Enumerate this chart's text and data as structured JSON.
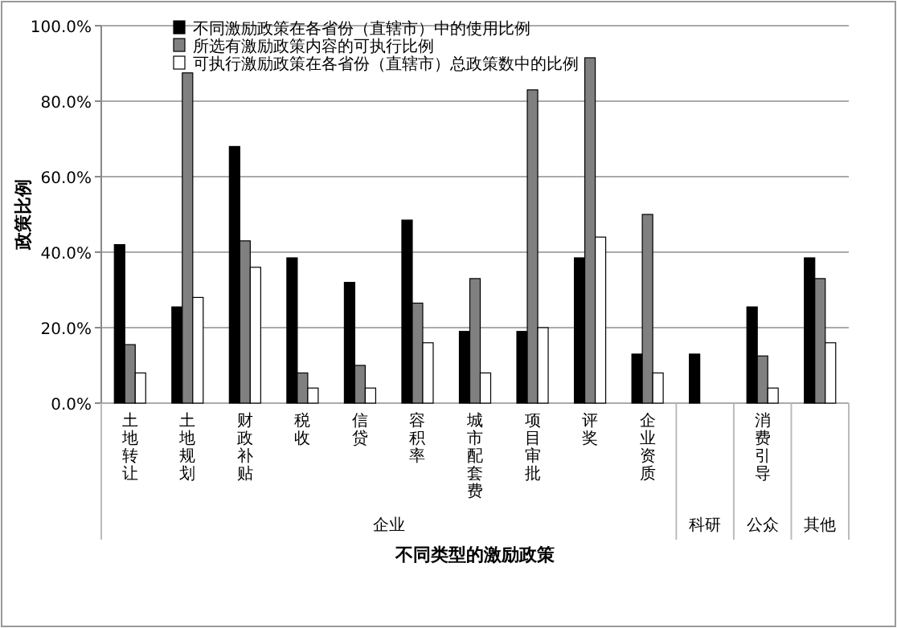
{
  "chart_data": {
    "type": "bar",
    "categories": [
      "土地转让",
      "土地规划",
      "财政补贴",
      "税收",
      "信贷",
      "容积率",
      "城市配套费",
      "项目审批",
      "评奖",
      "企业资质",
      null,
      "消费引导",
      null
    ],
    "series": [
      {
        "name": "不同激励政策在各省份（直辖市）中的使用比例",
        "color": "#000000",
        "values": [
          42,
          25.5,
          68,
          38.5,
          32,
          48.5,
          19,
          19,
          38.5,
          13,
          13,
          25.5,
          38.5
        ]
      },
      {
        "name": "所选有激励政策内容的可执行比例",
        "color": "#808080",
        "values": [
          15.5,
          87.5,
          43,
          8,
          10,
          26.5,
          33,
          83,
          91.5,
          50,
          null,
          12.5,
          33
        ]
      },
      {
        "name": "可执行激励政策在各省份（直辖市）总政策数中的比例",
        "color": "#ffffff",
        "values": [
          8,
          28,
          36,
          4,
          4,
          16,
          8,
          20,
          44,
          8,
          null,
          4,
          16
        ]
      }
    ],
    "xlabel": "不同类型的激励政策",
    "ylabel": "政策比例",
    "annotations": [
      "企业",
      "科研",
      "公众",
      "其他"
    ],
    "ylim": [
      0,
      100
    ],
    "yticks": [
      {
        "value": 0,
        "label": "0.0%"
      },
      {
        "value": 20,
        "label": "20.0%"
      },
      {
        "value": 40,
        "label": "40.0%"
      },
      {
        "value": 60,
        "label": "60.0%"
      },
      {
        "value": 80,
        "label": "80.0%"
      },
      {
        "value": 100,
        "label": "100.0%"
      }
    ],
    "grid": "y",
    "legend": "top"
  }
}
